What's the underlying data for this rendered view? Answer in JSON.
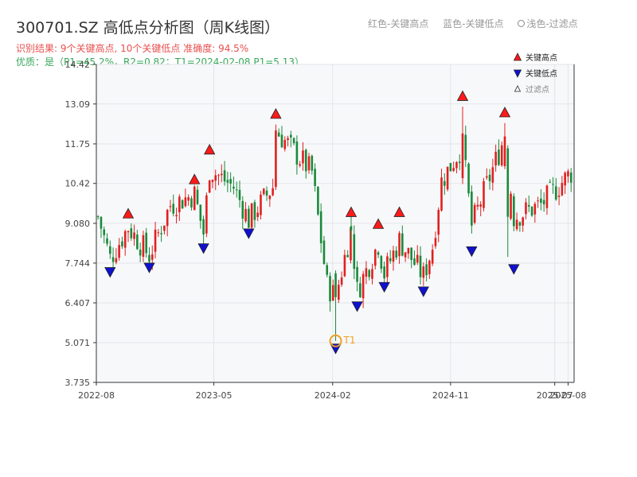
{
  "header": {
    "title": "300701.SZ 高低点分析图（周K线图）",
    "subtitle_result": "识别结果: 9个关键高点, 10个关键低点   准确度: 94.5%",
    "subtitle_quality": "优质：是（P1=45.2%，R2=0.82；T1=2024-02-08 P1=5.13）"
  },
  "top_legend": {
    "red_label": "红色-关键高点",
    "blue_label": "蓝色-关键低点",
    "light_label": "浅色-过滤点"
  },
  "colors": {
    "up": "#e02020",
    "down": "#1a8a3a",
    "high_marker": "#ff1a1a",
    "low_marker": "#1010d0",
    "t1": "#f0a020",
    "plot_bg": "#f7f8fa",
    "grid": "#e3e5ea"
  },
  "chart_data": {
    "type": "candlestick",
    "y_ticks": [
      "3.735",
      "5.071",
      "6.407",
      "7.744",
      "9.080",
      "10.42",
      "11.75",
      "13.09",
      "14.42"
    ],
    "ylim": [
      3.735,
      14.42
    ],
    "x_ticks": [
      {
        "label": "2022-08",
        "date": "2022-08"
      },
      {
        "label": "2023-05",
        "date": "2023-05"
      },
      {
        "label": "2024-02",
        "date": "2024-02"
      },
      {
        "label": "2024-11",
        "date": "2024-11"
      },
      {
        "label": "2025-07",
        "date": "2025-07"
      },
      {
        "label": "2025-08",
        "date": "2025-08"
      }
    ],
    "x_range": [
      "2022-08",
      "2025-08"
    ],
    "grid": true,
    "legend": {
      "position": "top-right",
      "items": [
        {
          "label": "关键高点",
          "marker": "triangle-up",
          "color": "#ff1a1a"
        },
        {
          "label": "关键低点",
          "marker": "triangle-down",
          "color": "#1010d0"
        },
        {
          "label": "过滤点",
          "marker": "triangle-up-small",
          "color": "#ffffff"
        }
      ]
    },
    "key_highs": [
      {
        "date": "2022-10-14",
        "value": 9.15
      },
      {
        "date": "2023-03-17",
        "value": 10.3
      },
      {
        "date": "2023-04-21",
        "value": 11.3
      },
      {
        "date": "2023-09-22",
        "value": 12.5
      },
      {
        "date": "2024-03-15",
        "value": 9.2
      },
      {
        "date": "2024-05-17",
        "value": 8.8
      },
      {
        "date": "2024-07-05",
        "value": 9.2
      },
      {
        "date": "2024-11-29",
        "value": 13.1
      },
      {
        "date": "2025-03-07",
        "value": 12.55
      }
    ],
    "key_lows": [
      {
        "date": "2022-09-02",
        "value": 7.7
      },
      {
        "date": "2022-12-02",
        "value": 7.85
      },
      {
        "date": "2023-04-07",
        "value": 8.5
      },
      {
        "date": "2023-07-21",
        "value": 9.0
      },
      {
        "date": "2024-02-08",
        "value": 5.13
      },
      {
        "date": "2024-03-29",
        "value": 6.55
      },
      {
        "date": "2024-05-31",
        "value": 7.2
      },
      {
        "date": "2024-08-30",
        "value": 7.05
      },
      {
        "date": "2024-12-20",
        "value": 8.4
      },
      {
        "date": "2025-03-28",
        "value": 7.8
      }
    ],
    "t1": {
      "label": "T1",
      "date": "2024-02-08",
      "value": 5.13
    },
    "segments": [
      {
        "start": "2022-08-05",
        "end": "2022-09-02",
        "from": 9.3,
        "to": 7.9
      },
      {
        "start": "2022-09-02",
        "end": "2022-10-14",
        "from": 7.9,
        "to": 8.95
      },
      {
        "start": "2022-10-14",
        "end": "2022-12-02",
        "from": 8.95,
        "to": 8.0
      },
      {
        "start": "2022-12-02",
        "end": "2023-01-20",
        "from": 8.0,
        "to": 9.7
      },
      {
        "start": "2023-01-20",
        "end": "2023-03-17",
        "from": 9.7,
        "to": 10.05
      },
      {
        "start": "2023-03-17",
        "end": "2023-04-07",
        "from": 10.05,
        "to": 8.75
      },
      {
        "start": "2023-04-07",
        "end": "2023-04-21",
        "from": 8.75,
        "to": 10.9
      },
      {
        "start": "2023-04-21",
        "end": "2023-06-16",
        "from": 10.9,
        "to": 10.3
      },
      {
        "start": "2023-06-16",
        "end": "2023-07-21",
        "from": 10.3,
        "to": 9.2
      },
      {
        "start": "2023-07-21",
        "end": "2023-09-15",
        "from": 9.2,
        "to": 10.3
      },
      {
        "start": "2023-09-15",
        "end": "2023-09-22",
        "from": 10.3,
        "to": 12.2
      },
      {
        "start": "2023-09-22",
        "end": "2023-12-15",
        "from": 12.2,
        "to": 10.8
      },
      {
        "start": "2023-12-15",
        "end": "2024-01-19",
        "from": 10.8,
        "to": 7.0
      },
      {
        "start": "2024-01-19",
        "end": "2024-02-08",
        "from": 7.0,
        "to": 6.6
      },
      {
        "start": "2024-02-08",
        "end": "2024-03-15",
        "from": 6.6,
        "to": 8.9
      },
      {
        "start": "2024-03-15",
        "end": "2024-03-29",
        "from": 8.9,
        "to": 6.8
      },
      {
        "start": "2024-03-29",
        "end": "2024-05-17",
        "from": 6.8,
        "to": 8.4
      },
      {
        "start": "2024-05-17",
        "end": "2024-05-31",
        "from": 8.4,
        "to": 7.4
      },
      {
        "start": "2024-05-31",
        "end": "2024-07-05",
        "from": 7.4,
        "to": 8.5
      },
      {
        "start": "2024-07-05",
        "end": "2024-08-30",
        "from": 8.5,
        "to": 7.3
      },
      {
        "start": "2024-08-30",
        "end": "2024-09-20",
        "from": 7.3,
        "to": 8.3
      },
      {
        "start": "2024-09-20",
        "end": "2024-10-11",
        "from": 8.3,
        "to": 10.5
      },
      {
        "start": "2024-10-11",
        "end": "2024-11-29",
        "from": 10.5,
        "to": 11.7
      },
      {
        "start": "2024-11-29",
        "end": "2024-12-20",
        "from": 11.7,
        "to": 9.0
      },
      {
        "start": "2024-12-20",
        "end": "2025-03-07",
        "from": 9.0,
        "to": 12.0
      },
      {
        "start": "2025-03-07",
        "end": "2025-03-28",
        "from": 12.0,
        "to": 9.3
      },
      {
        "start": "2025-03-28",
        "end": "2025-05-30",
        "from": 9.3,
        "to": 9.7
      },
      {
        "start": "2025-05-30",
        "end": "2025-08-15",
        "from": 9.7,
        "to": 10.9
      }
    ],
    "fixed_candles": [
      {
        "date": "2023-09-22",
        "open": 10.3,
        "close": 12.2,
        "high": 12.4,
        "low": 10.2
      },
      {
        "date": "2024-02-08",
        "open": 7.4,
        "close": 6.6,
        "high": 7.5,
        "low": 5.13
      },
      {
        "date": "2024-11-29",
        "open": 10.6,
        "close": 12.1,
        "high": 13.0,
        "low": 10.4
      },
      {
        "date": "2025-03-07",
        "open": 11.0,
        "close": 12.0,
        "high": 12.45,
        "low": 10.9
      },
      {
        "date": "2025-03-14",
        "open": 11.6,
        "close": 9.3,
        "high": 11.7,
        "low": 7.95
      }
    ]
  }
}
